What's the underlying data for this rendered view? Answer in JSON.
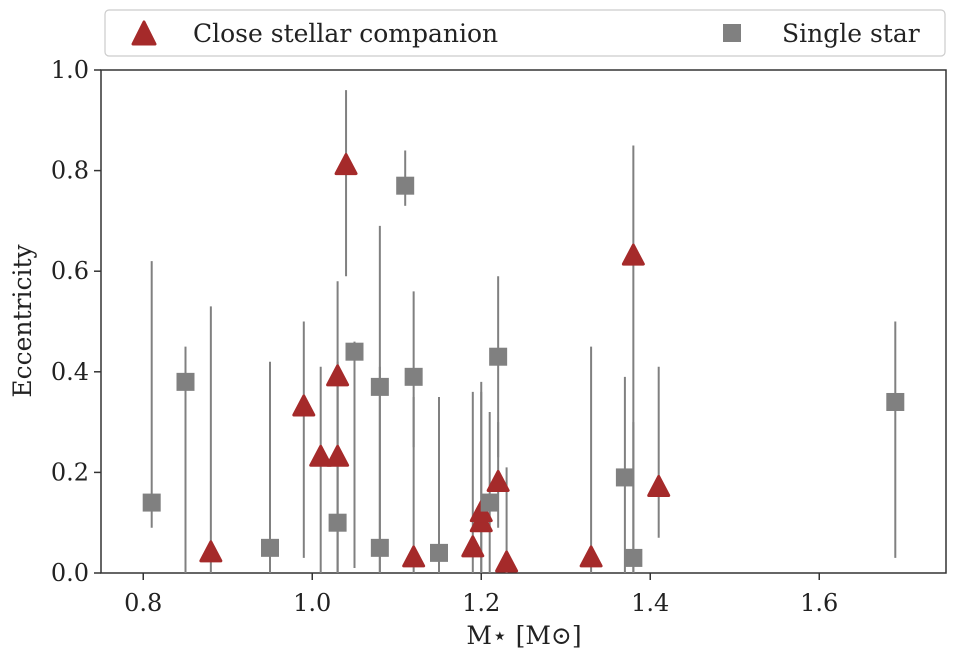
{
  "chart_data": {
    "type": "scatter",
    "title": "",
    "xlabel": "M⋆ [M⊙]",
    "ylabel": "Eccentricity",
    "xlim": [
      0.75,
      1.75
    ],
    "ylim": [
      0.0,
      1.0
    ],
    "xticks": [
      "0.8",
      "1.0",
      "1.2",
      "1.4",
      "1.6"
    ],
    "yticks": [
      "0.0",
      "0.2",
      "0.4",
      "0.6",
      "0.8",
      "1.0"
    ],
    "grid": false,
    "legend_position": "top, above plot",
    "series": [
      {
        "name": "Close stellar companion",
        "marker": "triangle",
        "color": "#A52A2A",
        "points": [
          {
            "x": 0.88,
            "y": 0.04,
            "ylo": 0.0,
            "yhi": 0.53
          },
          {
            "x": 0.99,
            "y": 0.33,
            "ylo": 0.03,
            "yhi": 0.5
          },
          {
            "x": 1.01,
            "y": 0.23,
            "ylo": 0.0,
            "yhi": 0.41
          },
          {
            "x": 1.03,
            "y": 0.23,
            "ylo": 0.0,
            "yhi": 0.42
          },
          {
            "x": 1.03,
            "y": 0.39,
            "ylo": 0.0,
            "yhi": 0.58
          },
          {
            "x": 1.04,
            "y": 0.81,
            "ylo": 0.59,
            "yhi": 0.96
          },
          {
            "x": 1.12,
            "y": 0.03,
            "ylo": 0.0,
            "yhi": 0.35
          },
          {
            "x": 1.19,
            "y": 0.05,
            "ylo": 0.0,
            "yhi": 0.36
          },
          {
            "x": 1.2,
            "y": 0.1,
            "ylo": 0.0,
            "yhi": 0.38
          },
          {
            "x": 1.2,
            "y": 0.12,
            "ylo": 0.0,
            "yhi": 0.36
          },
          {
            "x": 1.22,
            "y": 0.18,
            "ylo": 0.09,
            "yhi": 0.3
          },
          {
            "x": 1.23,
            "y": 0.02,
            "ylo": 0.0,
            "yhi": 0.21
          },
          {
            "x": 1.33,
            "y": 0.03,
            "ylo": 0.0,
            "yhi": 0.45
          },
          {
            "x": 1.38,
            "y": 0.63,
            "ylo": 0.0,
            "yhi": 0.85
          },
          {
            "x": 1.41,
            "y": 0.17,
            "ylo": 0.07,
            "yhi": 0.41
          }
        ]
      },
      {
        "name": "Single star",
        "marker": "square",
        "color": "#808080",
        "points": [
          {
            "x": 0.81,
            "y": 0.14,
            "ylo": 0.09,
            "yhi": 0.62
          },
          {
            "x": 0.85,
            "y": 0.38,
            "ylo": 0.0,
            "yhi": 0.45
          },
          {
            "x": 0.95,
            "y": 0.05,
            "ylo": 0.0,
            "yhi": 0.42
          },
          {
            "x": 1.03,
            "y": 0.1,
            "ylo": 0.0,
            "yhi": 0.42
          },
          {
            "x": 1.05,
            "y": 0.44,
            "ylo": 0.01,
            "yhi": 0.46
          },
          {
            "x": 1.08,
            "y": 0.05,
            "ylo": 0.0,
            "yhi": 0.41
          },
          {
            "x": 1.08,
            "y": 0.37,
            "ylo": 0.0,
            "yhi": 0.69
          },
          {
            "x": 1.11,
            "y": 0.77,
            "ylo": 0.73,
            "yhi": 0.84
          },
          {
            "x": 1.12,
            "y": 0.39,
            "ylo": 0.25,
            "yhi": 0.56
          },
          {
            "x": 1.15,
            "y": 0.04,
            "ylo": 0.0,
            "yhi": 0.35
          },
          {
            "x": 1.21,
            "y": 0.14,
            "ylo": 0.0,
            "yhi": 0.32
          },
          {
            "x": 1.22,
            "y": 0.43,
            "ylo": 0.23,
            "yhi": 0.59
          },
          {
            "x": 1.37,
            "y": 0.19,
            "ylo": 0.0,
            "yhi": 0.39
          },
          {
            "x": 1.38,
            "y": 0.03,
            "ylo": 0.0,
            "yhi": 0.3
          },
          {
            "x": 1.69,
            "y": 0.34,
            "ylo": 0.03,
            "yhi": 0.5
          }
        ]
      }
    ]
  }
}
